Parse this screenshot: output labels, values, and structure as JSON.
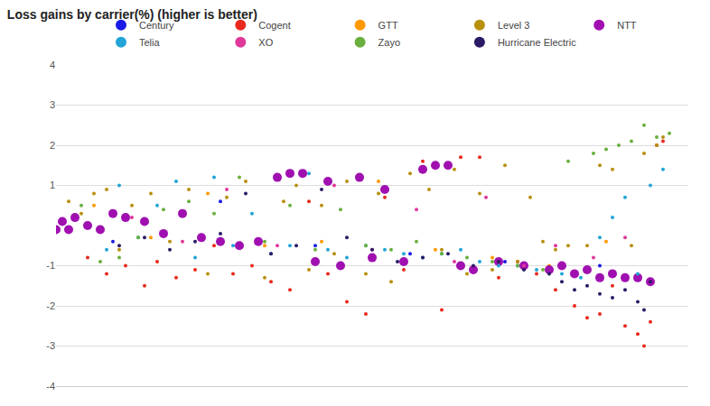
{
  "chart_data": {
    "type": "scatter",
    "title": "Loss gains by carrier(%) (higher is better)",
    "xlim": [
      0,
      100
    ],
    "ylim": [
      -4,
      4
    ],
    "yticks": [
      4,
      3,
      2,
      1,
      -1,
      -2,
      -3,
      -4
    ],
    "tick_labels": "y",
    "grid": true,
    "legend": "top",
    "series": [
      {
        "name": "Century",
        "color": "#1a1ae6",
        "marker": "dot",
        "x": [
          9,
          26,
          41,
          56,
          71,
          86
        ],
        "values": [
          -0.4,
          0.6,
          -0.5,
          -0.7,
          -0.9,
          -1.0
        ]
      },
      {
        "name": "Cogent",
        "color": "#e8291c",
        "marker": "dot",
        "x": [
          5,
          8,
          11,
          14,
          16,
          19,
          22,
          25,
          28,
          31,
          34,
          37,
          40,
          43,
          46,
          49,
          52,
          55,
          58,
          61,
          64,
          67,
          70,
          73,
          76,
          79,
          82,
          84,
          86,
          88,
          90,
          92,
          93,
          94,
          95,
          96
        ],
        "values": [
          -0.8,
          -1.2,
          -1.0,
          -1.5,
          -0.9,
          -1.3,
          -1.1,
          -0.5,
          -1.2,
          -1.0,
          -1.4,
          -1.6,
          0.6,
          -1.2,
          -1.9,
          -2.2,
          0.7,
          -1.1,
          1.6,
          -2.1,
          1.7,
          1.7,
          -1.3,
          -0.9,
          -1.2,
          -1.6,
          -2.0,
          -2.3,
          -2.2,
          -1.5,
          -2.5,
          -2.7,
          -3.0,
          -2.4,
          2.0,
          2.1
        ]
      },
      {
        "name": "GTT",
        "color": "#ff9900",
        "marker": "dot",
        "x": [
          6,
          15,
          24,
          33,
          42,
          51,
          60,
          69,
          78,
          87
        ],
        "values": [
          0.5,
          -0.3,
          0.8,
          -0.5,
          -0.4,
          1.1,
          -0.6,
          -0.8,
          -1.0,
          -0.4
        ]
      },
      {
        "name": "Level 3",
        "color": "#b8900f",
        "marker": "dot",
        "x": [
          2,
          4,
          6,
          8,
          10,
          12,
          15,
          18,
          21,
          24,
          27,
          30,
          33,
          36,
          38,
          40,
          42,
          44,
          46,
          49,
          51,
          53,
          56,
          59,
          61,
          63,
          65,
          67,
          69,
          71,
          73,
          75,
          77,
          79,
          81,
          84,
          86,
          88,
          91,
          93,
          95,
          96
        ],
        "values": [
          0.6,
          0.3,
          0.8,
          0.9,
          -0.6,
          0.5,
          0.8,
          -0.4,
          0.9,
          -1.2,
          0.7,
          1.1,
          -1.3,
          0.6,
          1.0,
          -1.1,
          0.5,
          -0.7,
          1.1,
          -1.2,
          0.8,
          -1.4,
          1.3,
          0.9,
          -0.6,
          1.4,
          -1.2,
          0.8,
          -1.1,
          1.5,
          -0.9,
          0.7,
          -0.4,
          -0.6,
          -0.5,
          -0.5,
          1.5,
          1.4,
          -0.5,
          1.8,
          2.0,
          2.2
        ]
      },
      {
        "name": "NTT",
        "color": "#a010b0",
        "marker": "circle",
        "x": [
          0,
          1,
          2,
          3,
          5,
          7,
          9,
          11,
          14,
          17,
          20,
          23,
          26,
          29,
          32,
          35,
          37,
          39,
          41,
          43,
          45,
          48,
          50,
          52,
          55,
          58,
          60,
          62,
          64,
          66,
          70,
          74,
          78,
          80,
          82,
          84,
          86,
          88,
          90,
          92,
          94
        ],
        "values": [
          -0.1,
          0.1,
          -0.1,
          0.2,
          0,
          -0.1,
          0.3,
          0.2,
          0.1,
          -0.2,
          0.3,
          -0.3,
          -0.4,
          -0.5,
          -0.4,
          1.2,
          1.3,
          1.3,
          -0.9,
          1.1,
          -1.0,
          1.2,
          -0.8,
          0.9,
          -0.9,
          1.4,
          1.5,
          1.5,
          -1.0,
          -1.1,
          -0.9,
          -1.0,
          -1.1,
          -1.0,
          -1.2,
          -1.1,
          -1.3,
          -1.2,
          -1.3,
          -1.3,
          -1.4
        ]
      },
      {
        "name": "Telia",
        "color": "#22a4d6",
        "marker": "dot",
        "x": [
          8,
          10,
          13,
          16,
          19,
          22,
          25,
          28,
          31,
          34,
          37,
          40,
          43,
          46,
          49,
          52,
          55,
          58,
          61,
          64,
          67,
          70,
          73,
          76,
          80,
          83,
          86,
          88,
          90,
          92,
          94,
          96
        ],
        "values": [
          -0.6,
          1.0,
          -0.3,
          0.5,
          1.1,
          -0.8,
          1.2,
          -0.5,
          0.3,
          -0.7,
          -0.5,
          1.3,
          -0.6,
          -0.8,
          -0.5,
          -0.6,
          -0.7,
          -0.8,
          -0.7,
          -0.6,
          -0.9,
          -1.0,
          -1.0,
          -1.1,
          -1.2,
          -1.3,
          -0.3,
          0.2,
          0.7,
          -1.2,
          1.0,
          1.4
        ]
      },
      {
        "name": "XO",
        "color": "#e0389a",
        "marker": "dot",
        "x": [
          12,
          20,
          27,
          35,
          44,
          50,
          57,
          63,
          68,
          74,
          79,
          85,
          90
        ],
        "values": [
          0.2,
          -0.4,
          0.9,
          -0.5,
          1.0,
          -0.6,
          0.4,
          -0.9,
          0.7,
          -1.0,
          -0.5,
          -0.8,
          -0.3
        ]
      },
      {
        "name": "Zayo",
        "color": "#6aaf3d",
        "marker": "dot",
        "x": [
          4,
          7,
          10,
          13,
          17,
          21,
          25,
          29,
          33,
          37,
          41,
          45,
          49,
          53,
          57,
          61,
          65,
          69,
          73,
          77,
          81,
          85,
          87,
          89,
          91,
          93,
          95,
          97
        ],
        "values": [
          0.5,
          -0.9,
          -0.8,
          -0.3,
          0.4,
          0.6,
          0.3,
          1.2,
          -0.4,
          0.5,
          -0.6,
          0.4,
          -0.5,
          -0.6,
          -0.4,
          -0.7,
          -0.8,
          -0.9,
          -1.0,
          -1.1,
          1.6,
          1.8,
          1.9,
          2.0,
          2.1,
          2.5,
          2.2,
          2.3
        ]
      },
      {
        "name": "Hurricane Electric",
        "color": "#2b1a66",
        "marker": "dot",
        "x": [
          10,
          14,
          18,
          22,
          26,
          30,
          34,
          38,
          42,
          46,
          50,
          54,
          58,
          62,
          66,
          70,
          74,
          78,
          80,
          82,
          84,
          86,
          88,
          90,
          92,
          93,
          94
        ],
        "values": [
          -0.5,
          -0.3,
          -0.6,
          -0.4,
          -0.2,
          0.8,
          -0.7,
          -0.5,
          0.9,
          -0.3,
          -0.6,
          -0.9,
          -0.8,
          -0.7,
          -1.0,
          -0.9,
          -1.1,
          -1.2,
          -1.4,
          -1.6,
          -1.5,
          -1.7,
          -1.8,
          -1.6,
          -1.9,
          -2.1,
          -1.4
        ]
      }
    ]
  }
}
